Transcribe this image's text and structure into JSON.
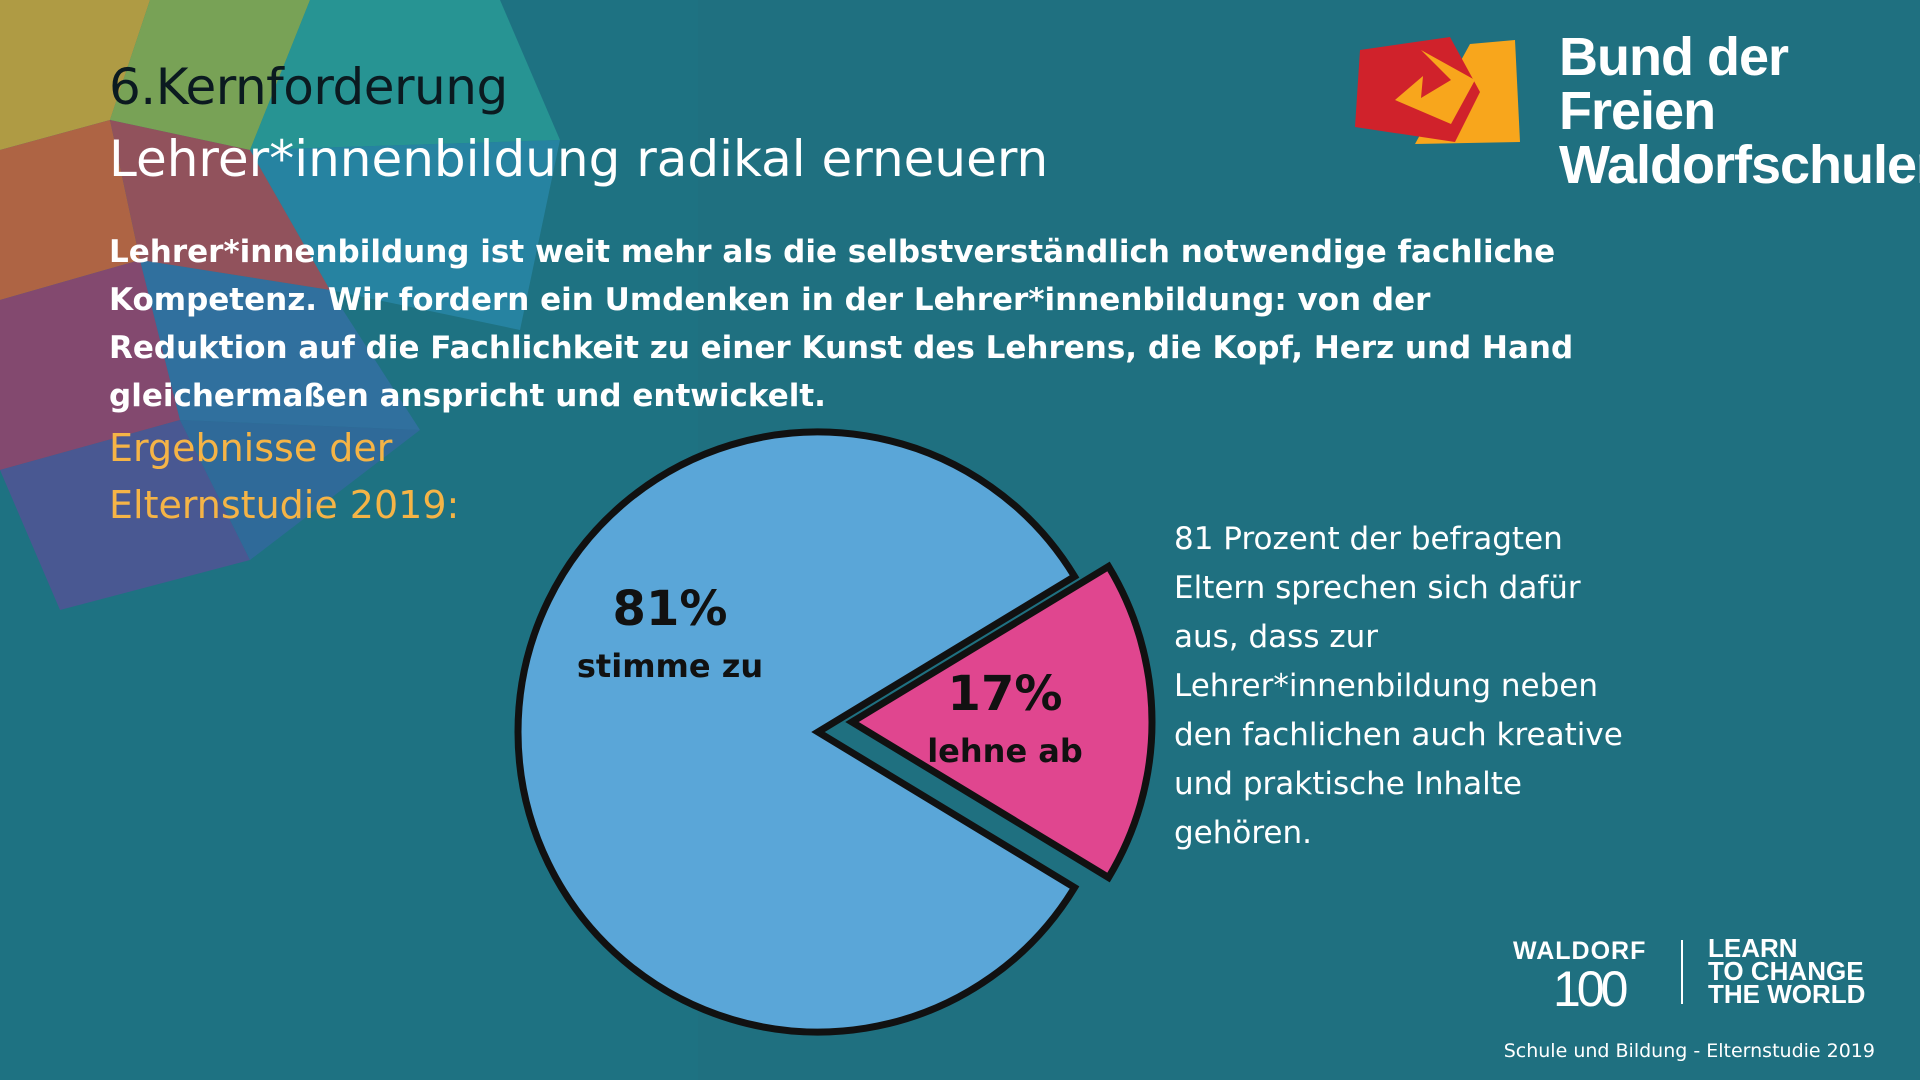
{
  "header": {
    "title": "6.Kernforderung",
    "subtitle": "Lehrer*innenbildung radikal erneuern"
  },
  "intro": "Lehrer*innenbildung ist weit mehr als die selbstverständlich notwendige fachliche Kompetenz. Wir fordern ein Umdenken in der Lehrer*innenbildung: von der Reduktion auf die Fachlichkeit zu einer Kunst des Lehrens, die Kopf, Herz und Hand gleichermaßen anspricht und entwickelt.",
  "results_heading": {
    "line1": "Ergebnisse der",
    "line2": "Elternstudie 2019:"
  },
  "side_text": "81 Prozent der befragten Eltern sprechen sich dafür aus, dass zur Lehrer*innenbildung neben den fachlichen auch kreative und praktische Inhalte gehören.",
  "brand": {
    "line1": "Bund der Freien",
    "line2": "Waldorfschulen",
    "logo_colors": [
      "#d0222b",
      "#f8a61c"
    ]
  },
  "waldorf100": {
    "word": "WALDORF",
    "number": "100",
    "slogan": [
      "LEARN",
      "TO CHANGE",
      "THE WORLD"
    ]
  },
  "footer": "Schule und Bildung - Elternstudie 2019",
  "colors": {
    "background": "#1e7282",
    "accent": "#f5b446",
    "agree": "#5aa6d8",
    "disagree": "#e0468f"
  },
  "chart_data": {
    "type": "pie",
    "slices": [
      {
        "label": "stimme zu",
        "value": 81,
        "display": "81%",
        "color": "#5aa6d8"
      },
      {
        "label": "lehne ab",
        "value": 17,
        "display": "17%",
        "color": "#e0468f"
      }
    ],
    "exploded": "lehne ab"
  }
}
